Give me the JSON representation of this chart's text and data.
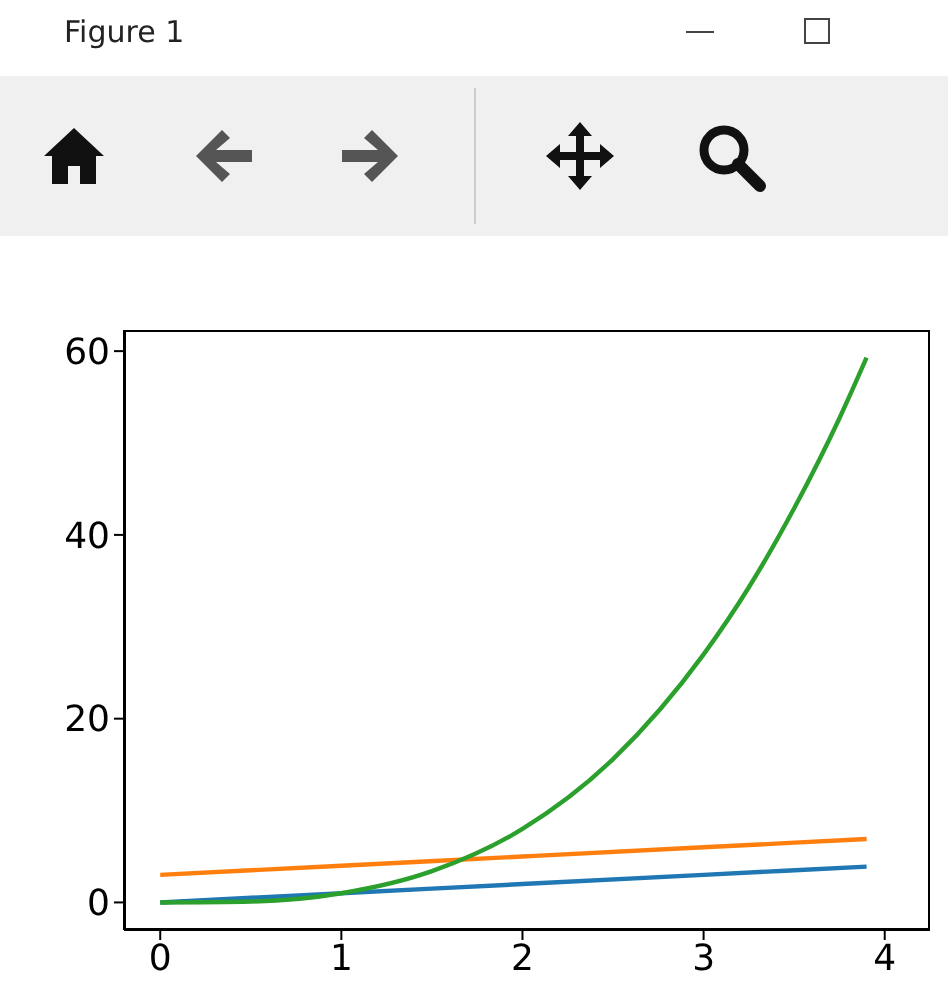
{
  "chart_data": {
    "type": "line",
    "annotations": [
      "Figure 1"
    ],
    "series": [
      {
        "color": "#1f77b4",
        "x": [
          0,
          1,
          2,
          3,
          3.9
        ],
        "values": [
          0,
          1,
          2,
          3,
          3.9
        ]
      },
      {
        "color": "#ff7f0e",
        "x": [
          0,
          1,
          2,
          3,
          3.9
        ],
        "values": [
          3,
          4,
          5,
          6,
          6.9
        ]
      },
      {
        "color": "#2ca02c",
        "x": [
          0,
          0.5,
          1,
          1.5,
          2,
          2.5,
          3,
          3.25,
          3.5,
          3.75,
          3.9
        ],
        "values": [
          0,
          0.1,
          1,
          3.4,
          8,
          15.6,
          27,
          34.3,
          42.9,
          52.7,
          59.3
        ]
      }
    ],
    "xlim": [
      -0.2,
      4.25
    ],
    "ylim": [
      -3,
      62.3
    ],
    "xticks": [
      0,
      1,
      2,
      3,
      4
    ],
    "yticks": [
      0,
      20,
      40,
      60
    ],
    "line_style": "solid",
    "marker": "none"
  }
}
